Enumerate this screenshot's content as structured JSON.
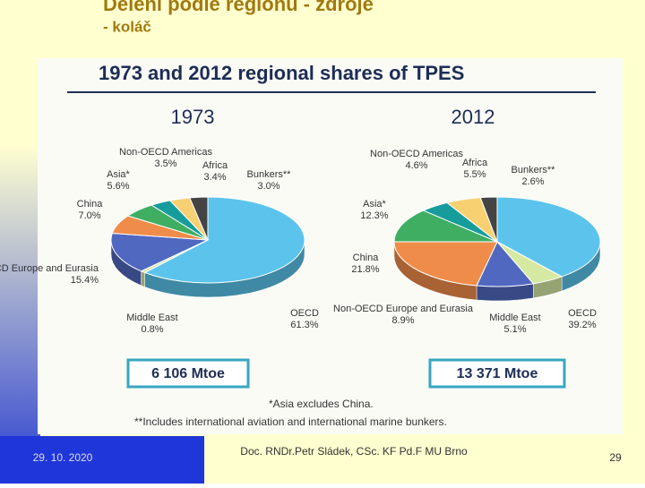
{
  "slide": {
    "title": "Dělení podle regionů - zdroje",
    "subtitle": "- koláč",
    "date": "29. 10. 2020",
    "author": "Doc. RNDr.Petr Sládek, CSc. KF Pd.F MU Brno",
    "page": "29"
  },
  "figure": {
    "title": "1973 and 2012 regional shares of TPES",
    "notes": [
      "*Asia excludes China.",
      "**Includes international aviation and international marine bunkers."
    ]
  },
  "chart_data": [
    {
      "type": "pie",
      "title": "1973",
      "total_label": "6 106 Mtoe",
      "categories": [
        "OECD",
        "Middle East",
        "Non-OECD Europe and Eurasia",
        "China",
        "Asia*",
        "Non-OECD Americas",
        "Africa",
        "Bunkers**"
      ],
      "values": [
        61.3,
        0.8,
        15.4,
        7.0,
        5.6,
        3.5,
        3.4,
        3.0
      ],
      "value_labels": [
        "61.3%",
        "0.8%",
        "15.4%",
        "7.0%",
        "5.6%",
        "3.5%",
        "3.4%",
        "3.0%"
      ],
      "colors": [
        "#5cc3ec",
        "#d6e9a3",
        "#5068c0",
        "#f08c4a",
        "#3fae62",
        "#179c9c",
        "#f7d072",
        "#444444"
      ]
    },
    {
      "type": "pie",
      "title": "2012",
      "total_label": "13 371 Mtoe",
      "categories": [
        "OECD",
        "Middle East",
        "Non-OECD Europe and Eurasia",
        "China",
        "Asia*",
        "Non-OECD Americas",
        "Africa",
        "Bunkers**"
      ],
      "values": [
        39.2,
        5.1,
        8.9,
        21.8,
        12.3,
        4.6,
        5.5,
        2.6
      ],
      "value_labels": [
        "39.2%",
        "5.1%",
        "8.9%",
        "21.8%",
        "12.3%",
        "4.6%",
        "5.5%",
        "2.6%"
      ],
      "colors": [
        "#5cc3ec",
        "#d6e9a3",
        "#5068c0",
        "#f08c4a",
        "#3fae62",
        "#179c9c",
        "#f7d072",
        "#444444"
      ]
    }
  ]
}
